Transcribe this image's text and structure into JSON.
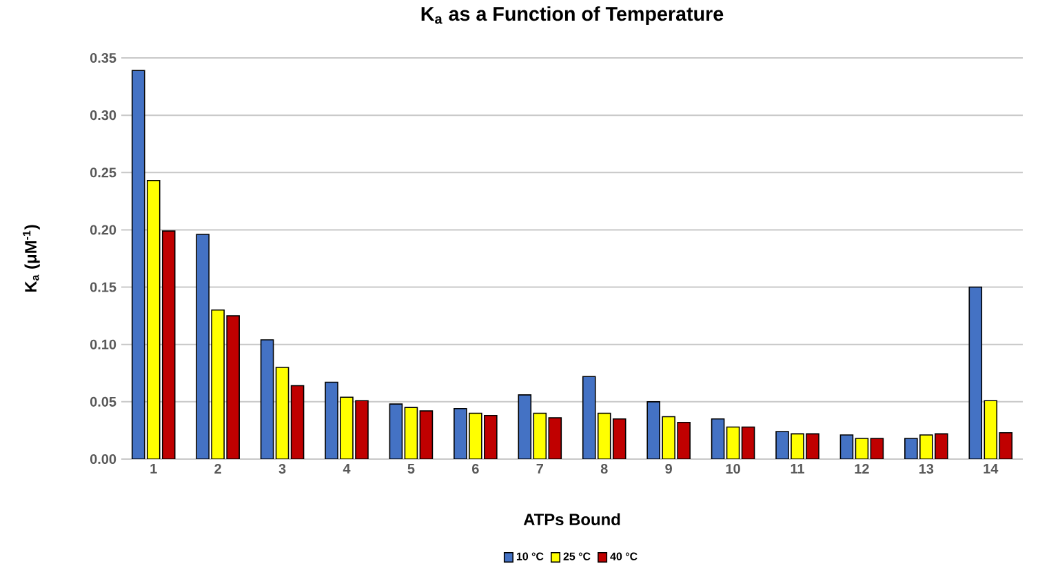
{
  "chart_data": {
    "type": "bar",
    "title": "K$_{a}$ as a Function of Temperature",
    "xlabel": "ATPs Bound",
    "ylabel": "K$_{a}$ (μM$^{-1}$)",
    "categories": [
      "1",
      "2",
      "3",
      "4",
      "5",
      "6",
      "7",
      "8",
      "9",
      "10",
      "11",
      "12",
      "13",
      "14"
    ],
    "series": [
      {
        "name": "10 °C",
        "color": "#4472c4",
        "values": [
          0.339,
          0.196,
          0.104,
          0.067,
          0.048,
          0.044,
          0.056,
          0.072,
          0.05,
          0.035,
          0.024,
          0.021,
          0.018,
          0.15
        ]
      },
      {
        "name": "25 °C",
        "color": "#ffff00",
        "values": [
          0.243,
          0.13,
          0.08,
          0.054,
          0.045,
          0.04,
          0.04,
          0.04,
          0.037,
          0.028,
          0.022,
          0.018,
          0.021,
          0.051
        ]
      },
      {
        "name": "40 °C",
        "color": "#c00000",
        "values": [
          0.199,
          0.125,
          0.064,
          0.051,
          0.042,
          0.038,
          0.036,
          0.035,
          0.032,
          0.028,
          0.022,
          0.018,
          0.022,
          0.023
        ]
      }
    ],
    "ylim": [
      0,
      0.35
    ],
    "yticks": [
      {
        "value": 0,
        "label": "0.00"
      },
      {
        "value": 0.05,
        "label": "0.05"
      },
      {
        "value": 0.1,
        "label": "0.10"
      },
      {
        "value": 0.15,
        "label": "0.15"
      },
      {
        "value": 0.2,
        "label": "0.20"
      },
      {
        "value": 0.25,
        "label": "0.25"
      },
      {
        "value": 0.3,
        "label": "0.30"
      },
      {
        "value": 0.35,
        "label": "0.35"
      }
    ],
    "grid": "y",
    "legend": "bottom"
  }
}
